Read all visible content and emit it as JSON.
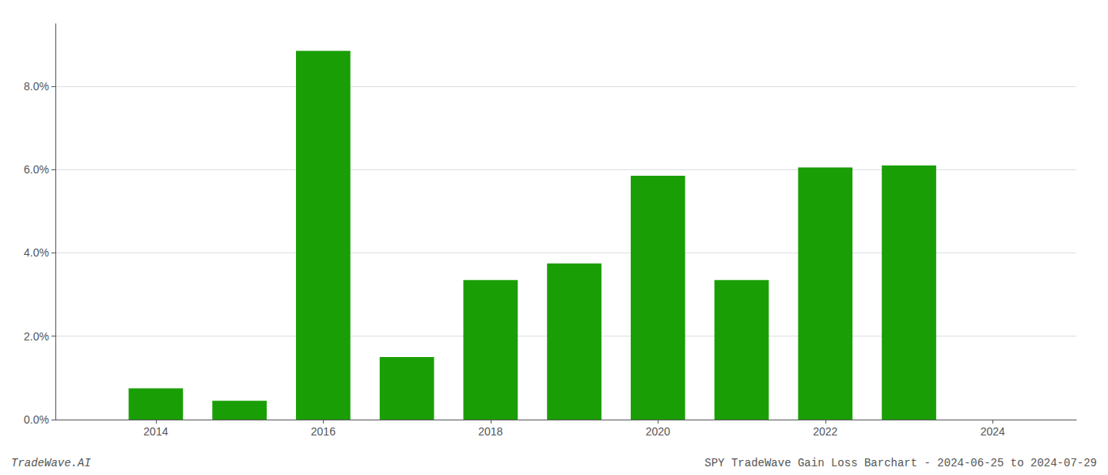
{
  "chart_data": {
    "type": "bar",
    "x": [
      2014,
      2015,
      2016,
      2017,
      2018,
      2019,
      2020,
      2021,
      2022,
      2023
    ],
    "values": [
      0.0075,
      0.0045,
      0.0885,
      0.015,
      0.0335,
      0.0375,
      0.0585,
      0.0335,
      0.0605,
      0.061
    ],
    "color": "#1a9e06",
    "xlim": [
      2012.8,
      2025.0
    ],
    "xticks": [
      2014,
      2016,
      2018,
      2020,
      2022,
      2024
    ],
    "ylim": [
      0,
      0.095
    ],
    "yticks": [
      {
        "value": 0.0,
        "label": "0.0%"
      },
      {
        "value": 0.02,
        "label": "2.0%"
      },
      {
        "value": 0.04,
        "label": "4.0%"
      },
      {
        "value": 0.06,
        "label": "6.0%"
      },
      {
        "value": 0.08,
        "label": "8.0%"
      }
    ],
    "grid": true,
    "annotations": [
      "TradeWave.AI",
      "SPY TradeWave Gain Loss Barchart - 2024-06-25 to 2024-07-29"
    ]
  }
}
